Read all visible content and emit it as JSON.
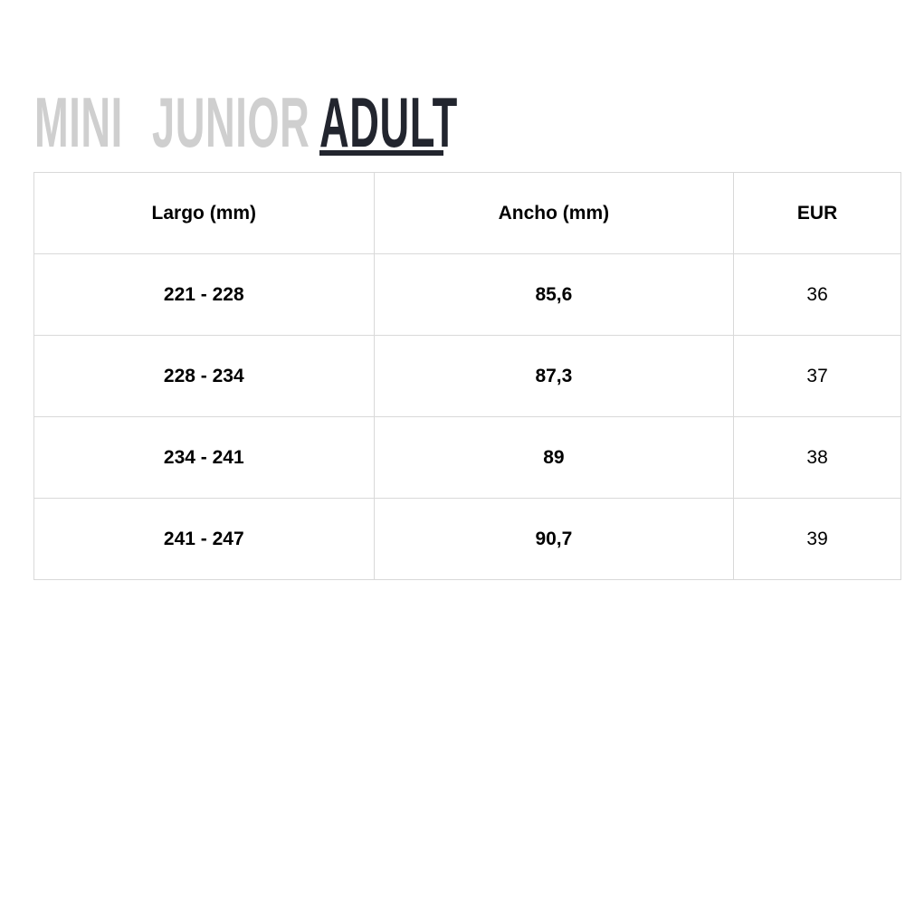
{
  "tabs": [
    {
      "label": "MINI",
      "active": false
    },
    {
      "label": "JUNIOR",
      "active": false
    },
    {
      "label": "ADULT",
      "active": true
    }
  ],
  "colors": {
    "inactive_tab": "#cfcfcf",
    "active_tab": "#22252e",
    "border": "#d9d9d9"
  },
  "table": {
    "headers": [
      "Largo (mm)",
      "Ancho (mm)",
      "EUR"
    ],
    "rows": [
      [
        "221 - 228",
        "85,6",
        "36"
      ],
      [
        "228 - 234",
        "87,3",
        "37"
      ],
      [
        "234 - 241",
        "89",
        "38"
      ],
      [
        "241 - 247",
        "90,7",
        "39"
      ]
    ]
  }
}
